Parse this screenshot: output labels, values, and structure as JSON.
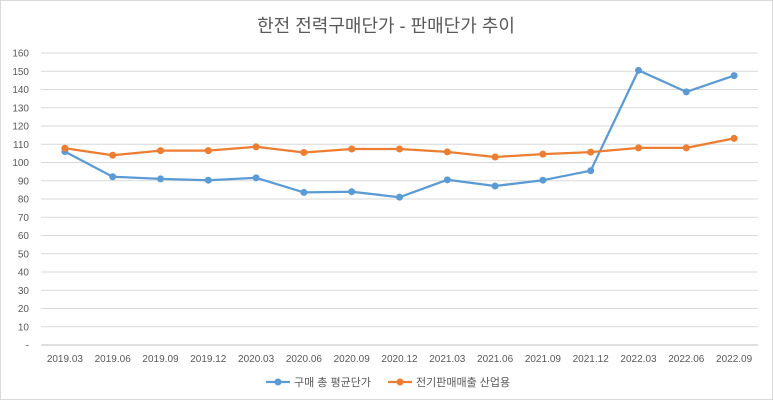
{
  "chart_data": {
    "type": "line",
    "title": "한전 전력구매단가 - 판매단가 추이",
    "xlabel": "",
    "ylabel": "",
    "categories": [
      "2019.03",
      "2019.06",
      "2019.09",
      "2019.12",
      "2020.03",
      "2020.06",
      "2020.09",
      "2020.12",
      "2021.03",
      "2021.06",
      "2021.09",
      "2021.12",
      "2022.03",
      "2022.06",
      "2022.09"
    ],
    "y_ticks": [
      "-",
      "10",
      "20",
      "30",
      "40",
      "50",
      "60",
      "70",
      "80",
      "90",
      "100",
      "110",
      "120",
      "130",
      "140",
      "150",
      "160"
    ],
    "ylim": [
      0,
      160
    ],
    "grid": true,
    "legend_position": "bottom",
    "series": [
      {
        "name": "구매 총 평균단가",
        "color": "#5b9bd5",
        "values": [
          106,
          92.2,
          91,
          90.3,
          91.6,
          83.6,
          84,
          81,
          90.5,
          87.1,
          90.3,
          95.5,
          150.5,
          138.7,
          147.6
        ]
      },
      {
        "name": "전기판매매출 산업용",
        "color": "#ed7d31",
        "values": [
          107.8,
          104,
          106.5,
          106.5,
          108.6,
          105.5,
          107.4,
          107.4,
          105.8,
          103,
          104.6,
          105.7,
          108,
          108,
          113.2
        ]
      }
    ]
  }
}
